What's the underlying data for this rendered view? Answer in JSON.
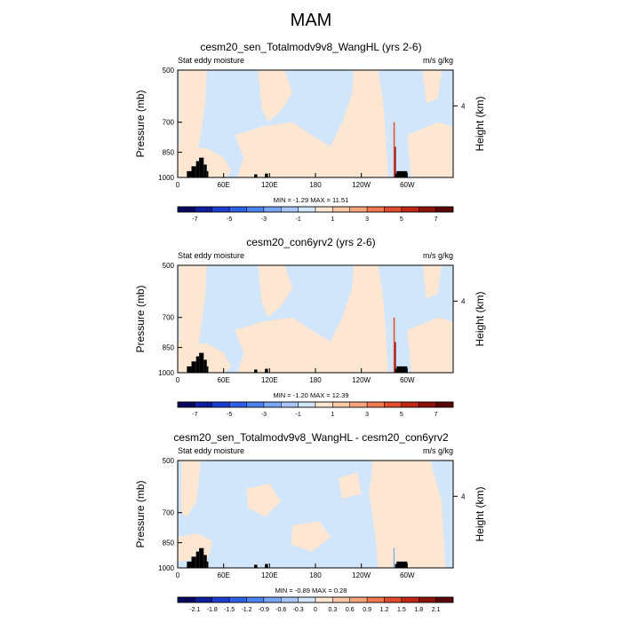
{
  "main_title": "MAM",
  "palettes": {
    "full": [
      "#08085e",
      "#0d1f9c",
      "#1c3fd0",
      "#2f61e8",
      "#4d83ef",
      "#7aa5f3",
      "#a8c7f8",
      "#d2e6fb",
      "#fde6d2",
      "#fcc9a8",
      "#f9a37c",
      "#f27a50",
      "#e14d2c",
      "#c12815",
      "#90110a",
      "#5b0606"
    ],
    "panel_fields": [
      "#d2e6fb",
      "#fde6d2"
    ],
    "diff_fields": [
      "#d2e6fb",
      "#fde6d2"
    ],
    "black": "#000000"
  },
  "chart_data": [
    {
      "type": "heatmap",
      "title": "cesm20_sen_Totalmodv9v8_WangHL (yrs 2-6)",
      "left_string": "Stat eddy moisture",
      "right_string": "m/s g/kg",
      "ylabel": "Pressure (mb)",
      "right_axis_label": "Height (km)",
      "y_ticks": [
        "500",
        "700",
        "850",
        "1000"
      ],
      "y_tick_values": [
        500,
        700,
        850,
        1000
      ],
      "right_ticks": [
        "4"
      ],
      "x_ticks": [
        "0",
        "60E",
        "120E",
        "180",
        "120W",
        "60W"
      ],
      "x_tick_values": [
        0,
        60,
        120,
        180,
        240,
        300
      ],
      "xlim": [
        0,
        360
      ],
      "ylim": [
        1000,
        500
      ],
      "stats": "MIN = -1.29  MAX =  11.51",
      "colorbar_labels": [
        "-7",
        "-5",
        "-3",
        "-1",
        "1",
        "3",
        "5",
        "7"
      ],
      "contour_levels": [
        -7,
        -6,
        -5,
        -4,
        -3,
        -2,
        -1,
        0,
        1,
        2,
        3,
        4,
        5,
        6,
        7
      ],
      "min": -1.29,
      "max": 11.51
    },
    {
      "type": "heatmap",
      "title": "cesm20_con6yrv2 (yrs 2-6)",
      "left_string": "Stat eddy moisture",
      "right_string": "m/s g/kg",
      "ylabel": "Pressure (mb)",
      "right_axis_label": "Height (km)",
      "y_ticks": [
        "500",
        "700",
        "850",
        "1000"
      ],
      "y_tick_values": [
        500,
        700,
        850,
        1000
      ],
      "right_ticks": [
        "4"
      ],
      "x_ticks": [
        "0",
        "60E",
        "120E",
        "180",
        "120W",
        "60W"
      ],
      "x_tick_values": [
        0,
        60,
        120,
        180,
        240,
        300
      ],
      "xlim": [
        0,
        360
      ],
      "ylim": [
        1000,
        500
      ],
      "stats": "MIN = -1.20  MAX =  12.39",
      "colorbar_labels": [
        "-7",
        "-5",
        "-3",
        "-1",
        "1",
        "3",
        "5",
        "7"
      ],
      "contour_levels": [
        -7,
        -6,
        -5,
        -4,
        -3,
        -2,
        -1,
        0,
        1,
        2,
        3,
        4,
        5,
        6,
        7
      ],
      "min": -1.2,
      "max": 12.39
    },
    {
      "type": "heatmap",
      "title": "cesm20_sen_Totalmodv9v8_WangHL - cesm20_con6yrv2",
      "left_string": "Stat eddy moisture",
      "right_string": "m/s g/kg",
      "ylabel": "Pressure (mb)",
      "right_axis_label": "Height (km)",
      "y_ticks": [
        "500",
        "700",
        "850",
        "1000"
      ],
      "y_tick_values": [
        500,
        700,
        850,
        1000
      ],
      "right_ticks": [
        "4"
      ],
      "x_ticks": [
        "0",
        "60E",
        "120E",
        "180",
        "120W",
        "60W"
      ],
      "x_tick_values": [
        0,
        60,
        120,
        180,
        240,
        300
      ],
      "xlim": [
        0,
        360
      ],
      "ylim": [
        1000,
        500
      ],
      "stats": "MIN = -0.89  MAX =  0.28",
      "colorbar_labels": [
        "-2.1",
        "-1.8",
        "-1.5",
        "-1.2",
        "-0.9",
        "-0.6",
        "-0.3",
        "0",
        "0.3",
        "0.6",
        "0.9",
        "1.2",
        "1.5",
        "1.8",
        "2.1"
      ],
      "contour_levels": [
        -2.1,
        -1.8,
        -1.5,
        -1.2,
        -0.9,
        -0.6,
        -0.3,
        0,
        0.3,
        0.6,
        0.9,
        1.2,
        1.5,
        1.8,
        2.1
      ],
      "min": -0.89,
      "max": 0.28
    }
  ]
}
